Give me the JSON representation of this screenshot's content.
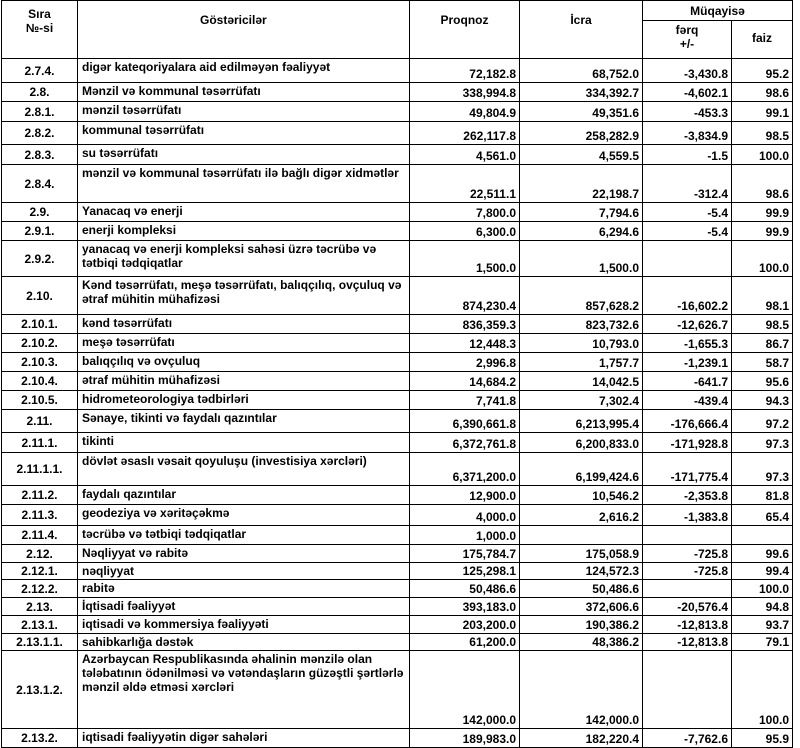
{
  "header": {
    "code": [
      "Sıra",
      "№-si"
    ],
    "name": "Göstəricilər",
    "forecast": "Proqnoz",
    "actual": "İcra",
    "comparison": "Müqayisə",
    "difference": [
      "fərq",
      "+/-"
    ],
    "percent": "faiz"
  },
  "table": {
    "rows": [
      [
        "2.7.4.",
        "digər kateqoriyalara aid edilməyən fəaliyyət",
        "72,182.8",
        "68,752.0",
        "-3,430.8",
        "95.2"
      ],
      [
        "2.8.",
        "Mənzil və kommunal təsərrüfatı",
        "338,994.8",
        "334,392.7",
        "-4,602.1",
        "98.6"
      ],
      [
        "2.8.1.",
        "mənzil təsərrüfatı",
        "49,804.9",
        "49,351.6",
        "-453.3",
        "99.1"
      ],
      [
        "2.8.2.",
        "kommunal təsərrüfatı",
        "262,117.8",
        "258,282.9",
        "-3,834.9",
        "98.5"
      ],
      [
        "2.8.3.",
        "su təsərrüfatı",
        "4,561.0",
        "4,559.5",
        "-1.5",
        "100.0"
      ],
      [
        "2.8.4.",
        "mənzil və kommunal təsərrüfatı ilə bağlı digər xidmətlər",
        "22,511.1",
        "22,198.7",
        "-312.4",
        "98.6"
      ],
      [
        "2.9.",
        "Yanacaq və enerji",
        "7,800.0",
        "7,794.6",
        "-5.4",
        "99.9"
      ],
      [
        "2.9.1.",
        "enerji kompleksi",
        "6,300.0",
        "6,294.6",
        "-5.4",
        "99.9"
      ],
      [
        "2.9.2.",
        "yanacaq və enerji kompleksi sahəsi üzrə təcrübə və tətbiqi tədqiqatlar",
        "1,500.0",
        "1,500.0",
        null,
        "100.0"
      ],
      [
        "2.10.",
        "Kənd təsərrüfatı, meşə təsərrüfatı, balıqçılıq, ovçuluq və ətraf mühitin mühafizəsi",
        "874,230.4",
        "857,628.2",
        "-16,602.2",
        "98.1"
      ],
      [
        "2.10.1.",
        "kənd təsərrüfatı",
        "836,359.3",
        "823,732.6",
        "-12,626.7",
        "98.5"
      ],
      [
        "2.10.2.",
        "meşə təsərrüfatı",
        "12,448.3",
        "10,793.0",
        "-1,655.3",
        "86.7"
      ],
      [
        "2.10.3.",
        "balıqçılıq və ovçuluq",
        "2,996.8",
        "1,757.7",
        "-1,239.1",
        "58.7"
      ],
      [
        "2.10.4.",
        "ətraf mühitin mühafizəsi",
        "14,684.2",
        "14,042.5",
        "-641.7",
        "95.6"
      ],
      [
        "2.10.5.",
        "hidrometeorologiya tədbirləri",
        "7,741.8",
        "7,302.4",
        "-439.4",
        "94.3"
      ],
      [
        "2.11.",
        "Sənaye, tikinti və faydalı qazıntılar",
        "6,390,661.8",
        "6,213,995.4",
        "-176,666.4",
        "97.2"
      ],
      [
        "2.11.1.",
        "tikinti",
        "6,372,761.8",
        "6,200,833.0",
        "-171,928.8",
        "97.3"
      ],
      [
        "2.11.1.1.",
        "dövlət əsaslı vəsait qoyuluşu (investisiya xərcləri)",
        "6,371,200.0",
        "6,199,424.6",
        "-171,775.4",
        "97.3"
      ],
      [
        "2.11.2.",
        "faydalı qazıntılar",
        "12,900.0",
        "10,546.2",
        "-2,353.8",
        "81.8"
      ],
      [
        "2.11.3.",
        "geodeziya və xəritəçəkmə",
        "4,000.0",
        "2,616.2",
        "-1,383.8",
        "65.4"
      ],
      [
        "2.11.4.",
        "təcrübə və tətbiqi tədqiqatlar",
        "1,000.0",
        null,
        null,
        null
      ],
      [
        "2.12.",
        "Nəqliyyat və rabitə",
        "175,784.7",
        "175,058.9",
        "-725.8",
        "99.6"
      ],
      [
        "2.12.1.",
        "nəqliyyat",
        "125,298.1",
        "124,572.3",
        "-725.8",
        "99.4"
      ],
      [
        "2.12.2.",
        "rabitə",
        "50,486.6",
        "50,486.6",
        null,
        "100.0"
      ],
      [
        "2.13.",
        "İqtisadi fəaliyyət",
        "393,183.0",
        "372,606.6",
        "-20,576.4",
        "94.8"
      ],
      [
        "2.13.1.",
        "iqtisadi və kommersiya fəaliyyəti",
        "203,200.0",
        "190,386.2",
        "-12,813.8",
        "93.7"
      ],
      [
        "2.13.1.1.",
        "sahibkarlığa dəstək",
        "61,200.0",
        "48,386.2",
        "-12,813.8",
        "79.1"
      ],
      [
        "2.13.1.2.",
        "Azərbaycan Respublikasında əhalinin mənzilə olan tələbatının ödənilməsi və vətəndaşların güzəştli şərtlərlə mənzil əldə etməsi xərcləri",
        "142,000.0",
        "142,000.0",
        null,
        "100.0"
      ],
      [
        "2.13.2.",
        "iqtisadi fəaliyyətin digər sahələri",
        "189,983.0",
        "182,220.4",
        "-7,762.6",
        "95.9"
      ]
    ]
  }
}
